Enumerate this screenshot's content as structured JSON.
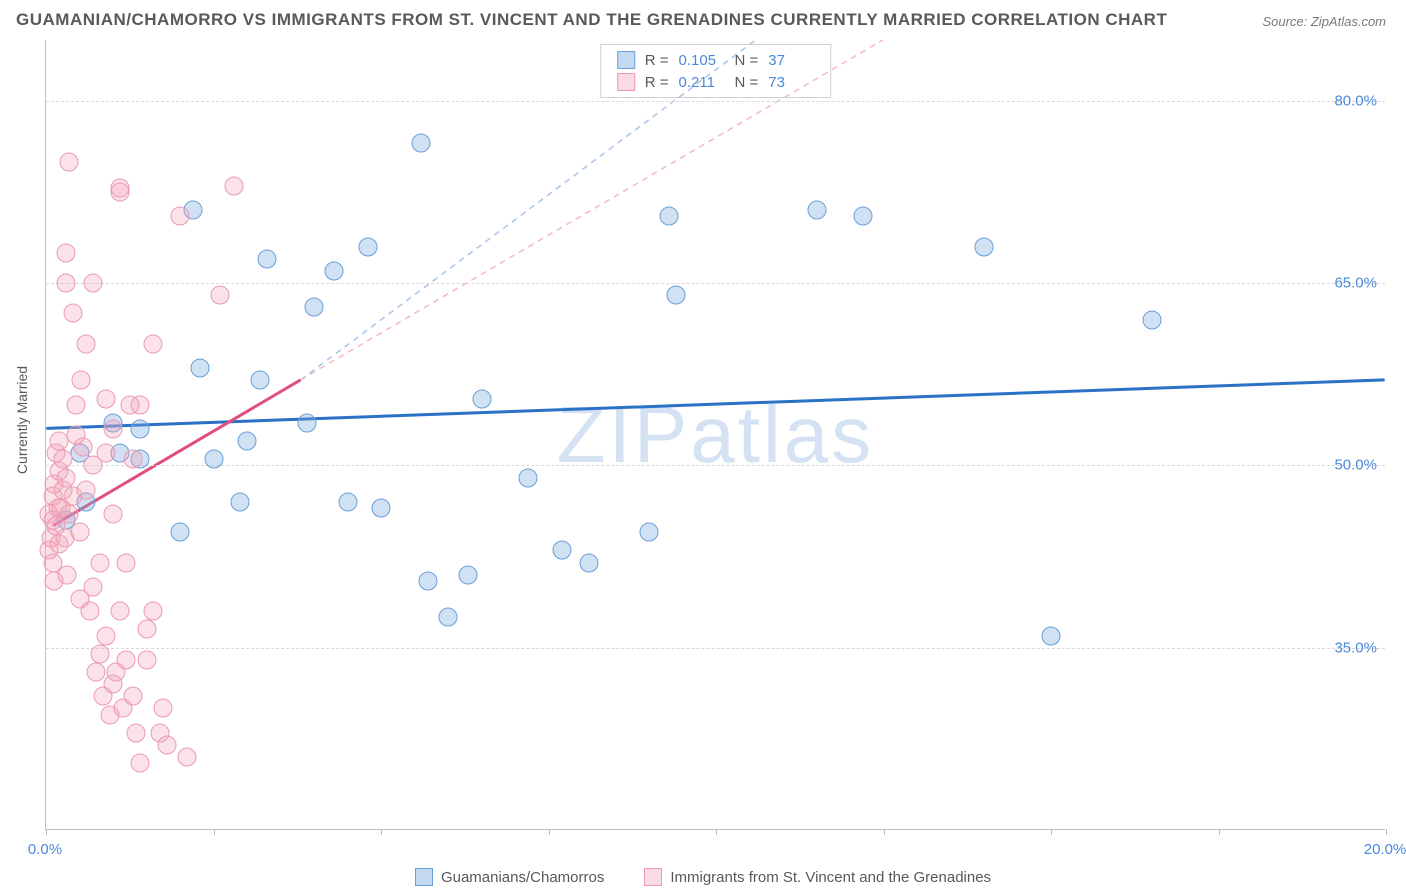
{
  "title": "GUAMANIAN/CHAMORRO VS IMMIGRANTS FROM ST. VINCENT AND THE GRENADINES CURRENTLY MARRIED CORRELATION CHART",
  "source": "Source: ZipAtlas.com",
  "watermark": "ZIPatlas",
  "y_axis_label": "Currently Married",
  "chart": {
    "type": "scatter",
    "xlim": [
      0,
      20
    ],
    "ylim": [
      20,
      85
    ],
    "y_ticks": [
      35,
      50,
      65,
      80
    ],
    "y_tick_labels": [
      "35.0%",
      "50.0%",
      "65.0%",
      "80.0%"
    ],
    "x_ticks": [
      0,
      2.5,
      5,
      7.5,
      10,
      12.5,
      15,
      17.5,
      20
    ],
    "x_tick_labels": {
      "0": "0.0%",
      "20": "20.0%"
    },
    "background_color": "#ffffff",
    "grid_color": "#d9d9d9",
    "series": [
      {
        "key": "blue",
        "name": "Guamanians/Chamorros",
        "color_fill": "rgba(122,170,224,0.35)",
        "color_stroke": "#6a9fd8",
        "marker_size": 19,
        "R": "0.105",
        "N": "37",
        "trend": {
          "x1": 0,
          "y1": 53,
          "x2": 20,
          "y2": 57,
          "stroke": "#2a72c8",
          "width": 3
        },
        "trend_extend": {
          "x1": 3.8,
          "y1": 57,
          "x2": 10.6,
          "y2": 85,
          "stroke": "#a8c5ea",
          "dash": "6,5",
          "width": 1.5
        },
        "points": [
          [
            0.3,
            45.5
          ],
          [
            0.5,
            51
          ],
          [
            0.6,
            47
          ],
          [
            1.0,
            53.5
          ],
          [
            1.1,
            51
          ],
          [
            1.4,
            50.5
          ],
          [
            1.4,
            53
          ],
          [
            2.0,
            44.5
          ],
          [
            2.2,
            71
          ],
          [
            2.3,
            58
          ],
          [
            2.5,
            50.5
          ],
          [
            2.9,
            47
          ],
          [
            3.0,
            52
          ],
          [
            3.2,
            57
          ],
          [
            3.3,
            67
          ],
          [
            3.9,
            53.5
          ],
          [
            4.0,
            63
          ],
          [
            4.3,
            66
          ],
          [
            4.5,
            47
          ],
          [
            4.8,
            68
          ],
          [
            5.0,
            46.5
          ],
          [
            5.6,
            76.5
          ],
          [
            5.7,
            40.5
          ],
          [
            6.0,
            37.5
          ],
          [
            6.3,
            41
          ],
          [
            6.5,
            55.5
          ],
          [
            7.2,
            49
          ],
          [
            7.7,
            43
          ],
          [
            8.1,
            42
          ],
          [
            9.0,
            44.5
          ],
          [
            9.3,
            70.5
          ],
          [
            9.4,
            64
          ],
          [
            11.5,
            71
          ],
          [
            12.2,
            70.5
          ],
          [
            14.0,
            68
          ],
          [
            15.0,
            36
          ],
          [
            16.5,
            62
          ]
        ]
      },
      {
        "key": "pink",
        "name": "Immigrants from St. Vincent and the Grenadines",
        "color_fill": "rgba(244,166,188,0.32)",
        "color_stroke": "#eb9ab1",
        "marker_size": 19,
        "R": "0.211",
        "N": "73",
        "trend": {
          "x1": 0.1,
          "y1": 45,
          "x2": 3.8,
          "y2": 57,
          "stroke": "#e04e7c",
          "width": 3
        },
        "trend_extend": {
          "x1": 3.8,
          "y1": 57,
          "x2": 12.5,
          "y2": 85,
          "stroke": "#f2b9c9",
          "dash": "6,5",
          "width": 1.5
        },
        "points": [
          [
            0.05,
            43
          ],
          [
            0.05,
            46
          ],
          [
            0.08,
            44
          ],
          [
            0.1,
            42
          ],
          [
            0.1,
            45.5
          ],
          [
            0.1,
            47.5
          ],
          [
            0.12,
            40.5
          ],
          [
            0.12,
            48.5
          ],
          [
            0.15,
            45
          ],
          [
            0.15,
            51
          ],
          [
            0.18,
            46.5
          ],
          [
            0.2,
            43.5
          ],
          [
            0.2,
            49.5
          ],
          [
            0.2,
            52
          ],
          [
            0.22,
            46.5
          ],
          [
            0.25,
            48
          ],
          [
            0.25,
            50.5
          ],
          [
            0.28,
            44
          ],
          [
            0.3,
            49
          ],
          [
            0.3,
            65
          ],
          [
            0.3,
            67.5
          ],
          [
            0.32,
            41
          ],
          [
            0.35,
            75
          ],
          [
            0.35,
            46
          ],
          [
            0.4,
            47.5
          ],
          [
            0.4,
            62.5
          ],
          [
            0.45,
            55
          ],
          [
            0.45,
            52.5
          ],
          [
            0.5,
            44.5
          ],
          [
            0.5,
            39
          ],
          [
            0.52,
            57
          ],
          [
            0.55,
            51.5
          ],
          [
            0.6,
            48
          ],
          [
            0.6,
            60
          ],
          [
            0.65,
            38
          ],
          [
            0.7,
            40
          ],
          [
            0.7,
            50
          ],
          [
            0.7,
            65
          ],
          [
            0.75,
            33
          ],
          [
            0.8,
            34.5
          ],
          [
            0.8,
            42
          ],
          [
            0.85,
            31
          ],
          [
            0.9,
            36
          ],
          [
            0.9,
            51
          ],
          [
            0.9,
            55.5
          ],
          [
            0.95,
            29.5
          ],
          [
            1.0,
            32
          ],
          [
            1.0,
            46
          ],
          [
            1.0,
            53
          ],
          [
            1.05,
            33
          ],
          [
            1.1,
            38
          ],
          [
            1.1,
            72.5
          ],
          [
            1.1,
            72.8
          ],
          [
            1.15,
            30
          ],
          [
            1.2,
            34
          ],
          [
            1.2,
            42
          ],
          [
            1.25,
            55
          ],
          [
            1.3,
            31
          ],
          [
            1.3,
            50.5
          ],
          [
            1.35,
            28
          ],
          [
            1.4,
            25.5
          ],
          [
            1.4,
            55
          ],
          [
            1.5,
            34
          ],
          [
            1.5,
            36.5
          ],
          [
            1.6,
            38
          ],
          [
            1.6,
            60
          ],
          [
            1.7,
            28
          ],
          [
            1.75,
            30
          ],
          [
            1.8,
            27
          ],
          [
            2.0,
            70.5
          ],
          [
            2.1,
            26
          ],
          [
            2.6,
            64
          ],
          [
            2.8,
            73
          ]
        ]
      }
    ]
  },
  "legend_top": {
    "r_label": "R =",
    "n_label": "N ="
  },
  "legend_bottom": [
    {
      "swatch": "blue",
      "label": "Guamanians/Chamorros"
    },
    {
      "swatch": "pink",
      "label": "Immigrants from St. Vincent and the Grenadines"
    }
  ]
}
